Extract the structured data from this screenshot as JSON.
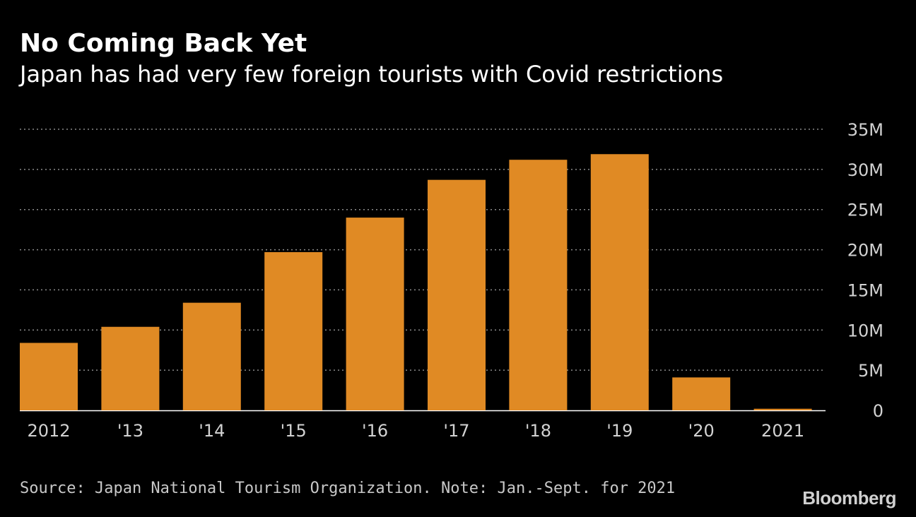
{
  "header": {
    "title": "No Coming Back Yet",
    "subtitle": "Japan has had very few foreign tourists with Covid restrictions"
  },
  "chart_data": {
    "type": "bar",
    "categories": [
      "2012",
      "'13",
      "'14",
      "'15",
      "'16",
      "'17",
      "'18",
      "'19",
      "'20",
      "2021"
    ],
    "values": [
      8.4,
      10.4,
      13.4,
      19.7,
      24.0,
      28.7,
      31.2,
      31.9,
      4.1,
      0.2
    ],
    "unit": "M",
    "ylim": [
      0,
      35
    ],
    "yticks": [
      0,
      5,
      10,
      15,
      20,
      25,
      30,
      35
    ],
    "ytick_labels": [
      "0",
      "5M",
      "10M",
      "15M",
      "20M",
      "25M",
      "30M",
      "35M"
    ],
    "grid": true,
    "y_axis_side": "right",
    "colors": {
      "bar": "#e08a24",
      "grid": "#8a8a8a",
      "baseline": "#ffffff",
      "tick_text": "#d2d2d2"
    }
  },
  "footer": {
    "source": "Source: Japan National Tourism Organization. Note: Jan.-Sept. for 2021",
    "logo": "Bloomberg"
  }
}
